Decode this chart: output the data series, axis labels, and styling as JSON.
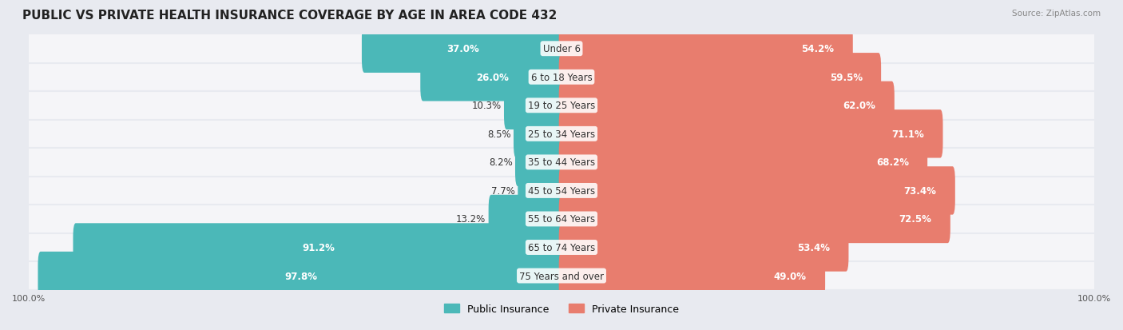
{
  "title": "PUBLIC VS PRIVATE HEALTH INSURANCE COVERAGE BY AGE IN AREA CODE 432",
  "source": "Source: ZipAtlas.com",
  "categories": [
    "Under 6",
    "6 to 18 Years",
    "19 to 25 Years",
    "25 to 34 Years",
    "35 to 44 Years",
    "45 to 54 Years",
    "55 to 64 Years",
    "65 to 74 Years",
    "75 Years and over"
  ],
  "public_values": [
    37.0,
    26.0,
    10.3,
    8.5,
    8.2,
    7.7,
    13.2,
    91.2,
    97.8
  ],
  "private_values": [
    54.2,
    59.5,
    62.0,
    71.1,
    68.2,
    73.4,
    72.5,
    53.4,
    49.0
  ],
  "public_color": "#4bb8b8",
  "private_color": "#e87d6e",
  "bg_color": "#e8eaf0",
  "row_bg_color": "#f5f5f8",
  "max_value": 100.0,
  "title_fontsize": 11,
  "label_fontsize": 8.5,
  "tick_fontsize": 8,
  "legend_fontsize": 9
}
